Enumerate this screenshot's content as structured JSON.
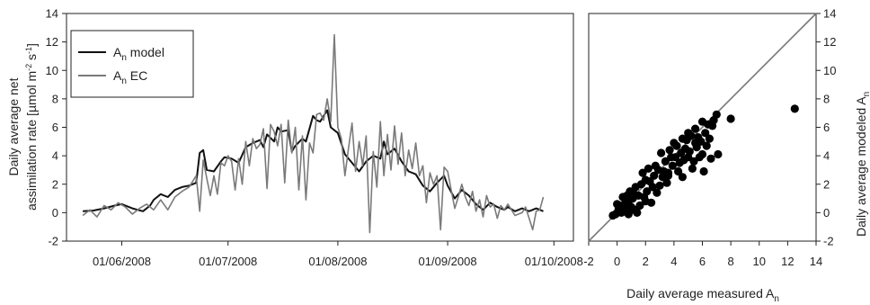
{
  "chart_data": [
    {
      "type": "line",
      "ylabel_line1": "Daily average net",
      "ylabel_line2_prefix": "assimilation rate [µmol m",
      "ylabel_sup1": "-2",
      "ylabel_mid": " s",
      "ylabel_sup2": "-1",
      "ylabel_suffix": "]",
      "ylim": [
        -2,
        14
      ],
      "yticks": [
        -2,
        0,
        2,
        4,
        6,
        8,
        10,
        12,
        14
      ],
      "xlim": [
        0,
        130
      ],
      "xtick_positions": [
        11,
        41,
        72,
        103,
        133
      ],
      "xtick_labels": [
        "01/06/2008",
        "01/07/2008",
        "01/08/2008",
        "01/09/2008",
        "01/10/2008"
      ],
      "legend_placement": "top-left",
      "series": [
        {
          "name": "A",
          "name_sub": "n",
          "name_suffix": " model",
          "color": "#111111",
          "values": [
            [
              0,
              0.1
            ],
            [
              3,
              0.15
            ],
            [
              6,
              0.3
            ],
            [
              9,
              0.5
            ],
            [
              11,
              0.6
            ],
            [
              14,
              0.3
            ],
            [
              17,
              0.1
            ],
            [
              19,
              0.5
            ],
            [
              20,
              0.9
            ],
            [
              22,
              1.3
            ],
            [
              24,
              1.1
            ],
            [
              26,
              1.6
            ],
            [
              28,
              1.8
            ],
            [
              30,
              1.9
            ],
            [
              32,
              2.1
            ],
            [
              33,
              4.2
            ],
            [
              34,
              4.4
            ],
            [
              35,
              3.0
            ],
            [
              37,
              2.9
            ],
            [
              39,
              3.6
            ],
            [
              40,
              3.9
            ],
            [
              42,
              3.8
            ],
            [
              44,
              3.5
            ],
            [
              46,
              4.6
            ],
            [
              48,
              4.9
            ],
            [
              50,
              5.1
            ],
            [
              51,
              4.6
            ],
            [
              52,
              5.5
            ],
            [
              54,
              5.0
            ],
            [
              55,
              6.0
            ],
            [
              56,
              5.7
            ],
            [
              58,
              5.8
            ],
            [
              59,
              4.3
            ],
            [
              60,
              4.7
            ],
            [
              62,
              5.2
            ],
            [
              63,
              5.0
            ],
            [
              65,
              6.8
            ],
            [
              66,
              6.5
            ],
            [
              67,
              6.4
            ],
            [
              69,
              7.2
            ],
            [
              70,
              6.0
            ],
            [
              72,
              5.6
            ],
            [
              74,
              4.1
            ],
            [
              76,
              3.5
            ],
            [
              78,
              2.9
            ],
            [
              80,
              3.6
            ],
            [
              82,
              4.0
            ],
            [
              84,
              3.8
            ],
            [
              85,
              5.0
            ],
            [
              86,
              4.1
            ],
            [
              88,
              4.5
            ],
            [
              90,
              3.6
            ],
            [
              92,
              2.9
            ],
            [
              94,
              2.7
            ],
            [
              96,
              1.9
            ],
            [
              98,
              1.5
            ],
            [
              100,
              2.1
            ],
            [
              102,
              2.6
            ],
            [
              103,
              1.9
            ],
            [
              105,
              1.0
            ],
            [
              107,
              1.6
            ],
            [
              109,
              1.2
            ],
            [
              111,
              0.6
            ],
            [
              113,
              0.2
            ],
            [
              115,
              0.7
            ],
            [
              117,
              0.4
            ],
            [
              119,
              0.2
            ],
            [
              120,
              0.4
            ],
            [
              122,
              0.1
            ],
            [
              124,
              0.3
            ],
            [
              126,
              0.1
            ],
            [
              128,
              0.3
            ],
            [
              130,
              0.1
            ]
          ]
        },
        {
          "name": "A",
          "name_sub": "n",
          "name_suffix": " EC",
          "color": "#7a7a7a",
          "values": [
            [
              0,
              -0.2
            ],
            [
              2,
              0.2
            ],
            [
              4,
              -0.3
            ],
            [
              6,
              0.5
            ],
            [
              8,
              0.2
            ],
            [
              10,
              0.7
            ],
            [
              12,
              0.4
            ],
            [
              14,
              -0.1
            ],
            [
              16,
              0.3
            ],
            [
              18,
              0.6
            ],
            [
              20,
              0.2
            ],
            [
              22,
              0.9
            ],
            [
              24,
              0.2
            ],
            [
              26,
              1.1
            ],
            [
              28,
              1.5
            ],
            [
              30,
              1.8
            ],
            [
              32,
              2.6
            ],
            [
              33,
              0.1
            ],
            [
              34,
              3.7
            ],
            [
              35,
              2.4
            ],
            [
              36,
              1.2
            ],
            [
              37,
              2.6
            ],
            [
              38,
              1.3
            ],
            [
              39,
              3.5
            ],
            [
              40,
              3.3
            ],
            [
              41,
              4.0
            ],
            [
              42,
              3.6
            ],
            [
              43,
              1.6
            ],
            [
              44,
              3.8
            ],
            [
              45,
              2.0
            ],
            [
              46,
              5.0
            ],
            [
              47,
              3.3
            ],
            [
              48,
              5.2
            ],
            [
              49,
              4.5
            ],
            [
              50,
              4.8
            ],
            [
              51,
              5.9
            ],
            [
              52,
              1.7
            ],
            [
              53,
              6.2
            ],
            [
              54,
              5.7
            ],
            [
              55,
              4.7
            ],
            [
              56,
              6.2
            ],
            [
              57,
              2.1
            ],
            [
              58,
              6.5
            ],
            [
              59,
              4.2
            ],
            [
              60,
              6.0
            ],
            [
              61,
              1.6
            ],
            [
              62,
              5.4
            ],
            [
              63,
              0.9
            ],
            [
              64,
              4.9
            ],
            [
              65,
              4.2
            ],
            [
              66,
              6.9
            ],
            [
              67,
              7.0
            ],
            [
              68,
              6.5
            ],
            [
              69,
              8.0
            ],
            [
              70,
              6.4
            ],
            [
              71,
              12.5
            ],
            [
              72,
              6.0
            ],
            [
              73,
              5.2
            ],
            [
              74,
              2.6
            ],
            [
              75,
              4.5
            ],
            [
              76,
              6.3
            ],
            [
              77,
              2.9
            ],
            [
              78,
              5.0
            ],
            [
              79,
              3.3
            ],
            [
              80,
              5.4
            ],
            [
              81,
              -1.4
            ],
            [
              82,
              4.3
            ],
            [
              83,
              1.8
            ],
            [
              84,
              6.4
            ],
            [
              85,
              2.6
            ],
            [
              86,
              5.5
            ],
            [
              87,
              3.0
            ],
            [
              88,
              6.1
            ],
            [
              89,
              3.4
            ],
            [
              90,
              5.6
            ],
            [
              91,
              2.6
            ],
            [
              92,
              4.4
            ],
            [
              93,
              3.1
            ],
            [
              94,
              4.9
            ],
            [
              95,
              2.6
            ],
            [
              96,
              3.3
            ],
            [
              97,
              0.7
            ],
            [
              98,
              2.8
            ],
            [
              99,
              2.0
            ],
            [
              100,
              2.6
            ],
            [
              101,
              -1.2
            ],
            [
              102,
              3.2
            ],
            [
              103,
              2.9
            ],
            [
              104,
              1.6
            ],
            [
              105,
              0.3
            ],
            [
              106,
              1.1
            ],
            [
              107,
              2.0
            ],
            [
              108,
              1.1
            ],
            [
              109,
              0.5
            ],
            [
              110,
              1.5
            ],
            [
              111,
              0.1
            ],
            [
              112,
              0.9
            ],
            [
              113,
              -0.3
            ],
            [
              114,
              1.2
            ],
            [
              115,
              0.4
            ],
            [
              116,
              0.6
            ],
            [
              117,
              -0.4
            ],
            [
              118,
              0.5
            ],
            [
              119,
              0.2
            ],
            [
              120,
              0.6
            ],
            [
              122,
              -0.2
            ],
            [
              124,
              0.0
            ],
            [
              125,
              0.4
            ],
            [
              127,
              -1.2
            ],
            [
              128,
              0.1
            ],
            [
              129,
              0.2
            ],
            [
              130,
              1.1
            ]
          ]
        }
      ]
    },
    {
      "type": "scatter",
      "xlabel_prefix": "Daily average measured A",
      "xlabel_sub": "n",
      "ylabel_prefix": "Daily average modeled A",
      "ylabel_sub": "n",
      "xlim": [
        -2,
        14
      ],
      "ylim": [
        -2,
        14
      ],
      "xticks": [
        -2,
        0,
        2,
        4,
        6,
        8,
        10,
        12,
        14
      ],
      "yticks": [
        -2,
        0,
        2,
        4,
        6,
        8,
        10,
        12,
        14
      ],
      "reference_line": "1:1",
      "points": [
        [
          -0.3,
          -0.2
        ],
        [
          -0.1,
          -0.1
        ],
        [
          0.1,
          0.2
        ],
        [
          0.3,
          0.0
        ],
        [
          0.2,
          0.5
        ],
        [
          0.5,
          0.3
        ],
        [
          0.6,
          0.8
        ],
        [
          0.8,
          0.6
        ],
        [
          0.4,
          1.1
        ],
        [
          1.0,
          0.4
        ],
        [
          1.1,
          1.0
        ],
        [
          0.9,
          1.5
        ],
        [
          1.3,
          1.8
        ],
        [
          1.5,
          1.2
        ],
        [
          1.7,
          2.0
        ],
        [
          0.6,
          0.1
        ],
        [
          0.8,
          -0.1
        ],
        [
          1.2,
          0.2
        ],
        [
          1.4,
          0.0
        ],
        [
          2.0,
          0.8
        ],
        [
          2.1,
          1.5
        ],
        [
          2.3,
          2.2
        ],
        [
          2.5,
          1.8
        ],
        [
          2.6,
          2.6
        ],
        [
          2.9,
          3.0
        ],
        [
          1.8,
          2.8
        ],
        [
          2.2,
          3.1
        ],
        [
          3.0,
          1.9
        ],
        [
          3.2,
          2.5
        ],
        [
          3.4,
          3.6
        ],
        [
          3.6,
          2.8
        ],
        [
          3.7,
          4.4
        ],
        [
          3.9,
          3.3
        ],
        [
          4.1,
          3.9
        ],
        [
          4.2,
          4.7
        ],
        [
          4.4,
          3.5
        ],
        [
          4.5,
          4.2
        ],
        [
          4.6,
          2.5
        ],
        [
          4.8,
          4.5
        ],
        [
          4.9,
          5.1
        ],
        [
          5.0,
          3.9
        ],
        [
          5.1,
          4.3
        ],
        [
          5.2,
          5.4
        ],
        [
          5.4,
          3.6
        ],
        [
          5.5,
          5.9
        ],
        [
          5.6,
          4.6
        ],
        [
          5.8,
          3.9
        ],
        [
          5.9,
          5.0
        ],
        [
          6.0,
          4.1
        ],
        [
          6.2,
          5.6
        ],
        [
          6.3,
          4.7
        ],
        [
          6.4,
          6.2
        ],
        [
          6.5,
          5.2
        ],
        [
          6.6,
          3.8
        ],
        [
          6.8,
          6.5
        ],
        [
          7.0,
          6.9
        ],
        [
          7.1,
          4.1
        ],
        [
          6.1,
          2.9
        ],
        [
          5.3,
          3.1
        ],
        [
          4.3,
          2.9
        ],
        [
          3.5,
          2.1
        ],
        [
          2.8,
          1.4
        ],
        [
          2.4,
          0.7
        ],
        [
          1.6,
          0.5
        ],
        [
          8.0,
          6.6
        ],
        [
          12.5,
          7.3
        ],
        [
          3.1,
          4.2
        ],
        [
          4.0,
          4.9
        ],
        [
          5.7,
          5.3
        ],
        [
          6.7,
          6.1
        ],
        [
          2.7,
          3.3
        ],
        [
          3.3,
          2.9
        ],
        [
          4.7,
          3.7
        ],
        [
          5.0,
          5.6
        ],
        [
          1.9,
          1.1
        ],
        [
          1.2,
          1.3
        ],
        [
          0.7,
          1.2
        ],
        [
          0.0,
          0.6
        ],
        [
          2.0,
          2.3
        ],
        [
          3.8,
          3.9
        ],
        [
          4.6,
          5.2
        ],
        [
          6.0,
          6.4
        ],
        [
          5.5,
          4.9
        ],
        [
          3.6,
          2.6
        ]
      ]
    }
  ]
}
